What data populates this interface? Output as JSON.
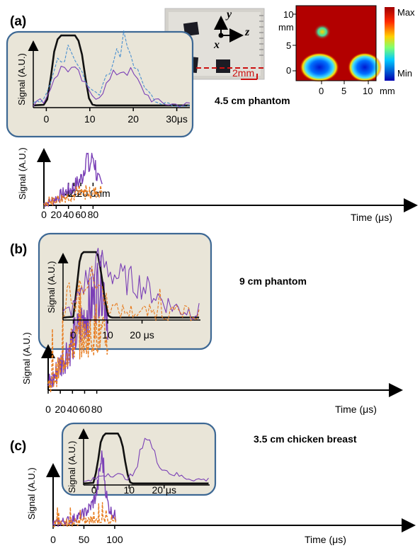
{
  "figure": {
    "panels": [
      {
        "id": "a",
        "label": "(a)",
        "title": "4.5 cm phantom"
      },
      {
        "id": "b",
        "label": "(b)",
        "title": "9 cm phantom"
      },
      {
        "id": "c",
        "label": "(c)",
        "title": "3.5 cm chicken breast"
      }
    ],
    "photo": {
      "axis_y": "y",
      "axis_z": "z",
      "axis_x": "x",
      "scale_bar": "2mm"
    },
    "heatmap": {
      "y_unit": "mm",
      "x_unit": "mm",
      "y_ticks": [
        "10",
        "5",
        "0"
      ],
      "x_ticks": [
        "0",
        "5",
        "10"
      ],
      "colorbar_max": "Max",
      "colorbar_min": "Min"
    }
  },
  "chart_data": [
    {
      "id": "a-main",
      "type": "line",
      "ylabel": "Signal (A.U.)",
      "xlabel": "Time (μs)",
      "xlim": [
        0,
        95
      ],
      "ylim": [
        0,
        1
      ],
      "x_ticks": [
        0,
        20,
        40,
        60,
        80
      ],
      "secondary_x_ticks": {
        "labels": [
          "-40",
          "-20",
          "0",
          "20"
        ],
        "unit": "mm",
        "at_time": [
          40,
          60,
          80,
          95
        ]
      },
      "series": [
        {
          "color": "#7a3fb6",
          "style": "solid",
          "x": [
            0,
            5,
            10,
            15,
            20,
            25,
            30,
            35,
            40,
            45,
            50,
            55,
            60,
            62,
            64,
            66,
            68,
            70,
            72,
            74,
            76,
            78,
            80,
            82,
            84,
            86,
            88,
            90,
            92,
            95
          ],
          "y": [
            0.03,
            0.05,
            0.08,
            0.11,
            0.14,
            0.18,
            0.22,
            0.26,
            0.3,
            0.34,
            0.38,
            0.45,
            0.52,
            0.58,
            0.66,
            0.82,
            0.98,
            1.0,
            0.88,
            0.7,
            0.86,
            0.98,
            1.0,
            0.92,
            0.78,
            0.62,
            0.52,
            0.45,
            0.4,
            0.38
          ]
        },
        {
          "color": "#e87c1f",
          "style": "dashed",
          "x": [
            0,
            5,
            10,
            15,
            20,
            25,
            30,
            35,
            40,
            45,
            50,
            55,
            60,
            65,
            70,
            75,
            80,
            85,
            90,
            95
          ],
          "y": [
            0.03,
            0.05,
            0.07,
            0.1,
            0.12,
            0.14,
            0.15,
            0.17,
            0.18,
            0.19,
            0.2,
            0.21,
            0.22,
            0.23,
            0.24,
            0.25,
            0.26,
            0.27,
            0.28,
            0.3
          ]
        }
      ]
    },
    {
      "id": "a-inset",
      "type": "line",
      "ylabel": "Signal (A.U.)",
      "xlabel": "μs",
      "xlim": [
        -3,
        33
      ],
      "ylim": [
        0,
        1
      ],
      "x_ticks": [
        0,
        10,
        20,
        30
      ],
      "series": [
        {
          "color": "#111111",
          "style": "solid",
          "x": [
            -3,
            0,
            1,
            2,
            3,
            7,
            8,
            9,
            10,
            11,
            33
          ],
          "y": [
            0.03,
            0.04,
            0.4,
            0.85,
            0.98,
            0.98,
            0.8,
            0.4,
            0.06,
            0.03,
            0.03
          ]
        },
        {
          "color": "#7a3fb6",
          "style": "solid",
          "x": [
            -3,
            0,
            2,
            4,
            6,
            8,
            10,
            12,
            14,
            16,
            18,
            20,
            22,
            24,
            26,
            28,
            30,
            33
          ],
          "y": [
            0.05,
            0.12,
            0.45,
            0.55,
            0.52,
            0.4,
            0.18,
            0.15,
            0.32,
            0.48,
            0.52,
            0.45,
            0.25,
            0.12,
            0.07,
            0.05,
            0.04,
            0.04
          ]
        },
        {
          "color": "#4a90d0",
          "style": "dashed",
          "x": [
            -3,
            0,
            2,
            4,
            6,
            8,
            10,
            12,
            14,
            16,
            18,
            20,
            22,
            24,
            26,
            28,
            30,
            33
          ],
          "y": [
            0.06,
            0.15,
            0.55,
            0.72,
            0.68,
            0.52,
            0.24,
            0.2,
            0.45,
            0.7,
            0.8,
            0.66,
            0.35,
            0.16,
            0.09,
            0.06,
            0.05,
            0.05
          ]
        }
      ]
    },
    {
      "id": "b-main",
      "type": "line",
      "ylabel": "Signal (A.U.)",
      "xlabel": "Time (μs)",
      "xlim": [
        0,
        100
      ],
      "ylim": [
        0,
        1
      ],
      "x_ticks": [
        0,
        20,
        40,
        60,
        80
      ],
      "series": [
        {
          "color": "#7a3fb6",
          "style": "solid",
          "x": [
            0,
            5,
            10,
            15,
            20,
            25,
            30,
            35,
            40,
            45,
            50,
            55,
            60,
            65,
            70,
            75,
            80,
            85,
            90,
            95,
            98
          ],
          "y": [
            0.04,
            0.06,
            0.1,
            0.15,
            0.2,
            0.25,
            0.3,
            0.34,
            0.38,
            0.42,
            0.46,
            0.52,
            0.58,
            0.62,
            0.66,
            0.72,
            0.78,
            0.86,
            0.84,
            0.68,
            0.6
          ]
        },
        {
          "color": "#e87c1f",
          "style": "dashed",
          "x": [
            0,
            5,
            10,
            15,
            20,
            25,
            30,
            35,
            40,
            45,
            50,
            55,
            60,
            65,
            70,
            75,
            80,
            85,
            90,
            95,
            98
          ],
          "y": [
            0.04,
            0.06,
            0.1,
            0.14,
            0.18,
            0.24,
            0.28,
            0.32,
            0.36,
            0.38,
            0.4,
            0.4,
            0.41,
            0.42,
            0.42,
            0.43,
            0.44,
            0.43,
            0.42,
            0.4,
            0.38
          ]
        }
      ]
    },
    {
      "id": "b-inset",
      "type": "line",
      "ylabel": "Signal (A.U.)",
      "xlabel": "μs",
      "xlim": [
        -3,
        37
      ],
      "ylim": [
        0,
        1
      ],
      "x_ticks": [
        0,
        10,
        20
      ],
      "series": [
        {
          "color": "#111111",
          "style": "solid",
          "x": [
            -3,
            0,
            1,
            2,
            3,
            7,
            8,
            9,
            10,
            11,
            37
          ],
          "y": [
            0.03,
            0.04,
            0.4,
            0.78,
            0.82,
            0.82,
            0.6,
            0.3,
            0.06,
            0.03,
            0.03
          ]
        },
        {
          "color": "#7a3fb6",
          "style": "solid",
          "x": [
            -3,
            0,
            2,
            4,
            6,
            8,
            10,
            12,
            14,
            16,
            18,
            20,
            24,
            28,
            32,
            37
          ],
          "y": [
            0.06,
            0.15,
            0.35,
            0.5,
            0.62,
            0.7,
            0.64,
            0.55,
            0.5,
            0.48,
            0.45,
            0.42,
            0.3,
            0.18,
            0.12,
            0.1
          ]
        },
        {
          "color": "#e87c1f",
          "style": "dashed",
          "x": [
            -3,
            0,
            2,
            4,
            6,
            8,
            10,
            12,
            16,
            20,
            24,
            28,
            32,
            37
          ],
          "y": [
            0.05,
            0.14,
            0.38,
            0.5,
            0.48,
            0.4,
            0.2,
            0.12,
            0.1,
            0.1,
            0.09,
            0.09,
            0.08,
            0.08
          ]
        }
      ]
    },
    {
      "id": "c-main",
      "type": "line",
      "ylabel": "Signal (A.U.)",
      "xlabel": "Time (μs)",
      "xlim": [
        0,
        102
      ],
      "ylim": [
        0,
        1
      ],
      "x_ticks": [
        0,
        50,
        100
      ],
      "series": [
        {
          "color": "#7a3fb6",
          "style": "solid",
          "x": [
            0,
            10,
            20,
            30,
            40,
            50,
            55,
            60,
            65,
            70,
            72,
            74,
            76,
            78,
            80,
            82,
            84,
            86,
            88,
            90,
            95,
            100,
            102
          ],
          "y": [
            0.02,
            0.04,
            0.06,
            0.08,
            0.12,
            0.16,
            0.2,
            0.25,
            0.32,
            0.42,
            0.52,
            0.64,
            0.78,
            0.9,
            0.92,
            0.8,
            0.62,
            0.46,
            0.34,
            0.26,
            0.18,
            0.14,
            0.12
          ]
        },
        {
          "color": "#e87c1f",
          "style": "dashed",
          "x": [
            0,
            10,
            20,
            30,
            40,
            50,
            60,
            70,
            80,
            90,
            100,
            102
          ],
          "y": [
            0.02,
            0.03,
            0.04,
            0.04,
            0.05,
            0.06,
            0.07,
            0.07,
            0.08,
            0.08,
            0.09,
            0.09
          ]
        }
      ]
    },
    {
      "id": "c-inset",
      "type": "line",
      "ylabel": "Signal (A.U.)",
      "xlabel": "μs",
      "xlim": [
        -3,
        33
      ],
      "ylim": [
        0,
        1
      ],
      "x_ticks": [
        0,
        10,
        20
      ],
      "series": [
        {
          "color": "#111111",
          "style": "solid",
          "x": [
            -3,
            0,
            1,
            2,
            3,
            7,
            8,
            9,
            10,
            11,
            33
          ],
          "y": [
            0.03,
            0.04,
            0.4,
            0.85,
            0.97,
            0.97,
            0.8,
            0.4,
            0.06,
            0.03,
            0.03
          ]
        },
        {
          "color": "#7a3fb6",
          "style": "solid",
          "x": [
            -3,
            0,
            2,
            4,
            6,
            8,
            10,
            12,
            13,
            14,
            15,
            16,
            17,
            18,
            20,
            22,
            24,
            26,
            28,
            30,
            33
          ],
          "y": [
            0.05,
            0.1,
            0.18,
            0.22,
            0.2,
            0.16,
            0.14,
            0.24,
            0.55,
            0.88,
            0.92,
            0.8,
            0.62,
            0.45,
            0.3,
            0.22,
            0.18,
            0.14,
            0.12,
            0.1,
            0.1
          ]
        }
      ]
    }
  ]
}
